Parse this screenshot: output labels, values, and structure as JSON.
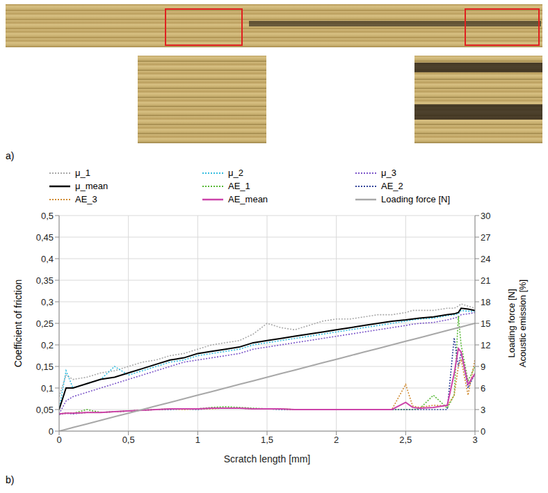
{
  "panel_labels": [
    "a)",
    "b)"
  ],
  "chart_data": {
    "type": "line",
    "xlabel": "Scratch length [mm]",
    "ylabel": "Coefficient of friction",
    "y2label": [
      "Loading force  [N]",
      "Acoustic emission [%]"
    ],
    "grid": true,
    "legend": "top",
    "x": [
      0,
      0.05,
      0.1,
      0.2,
      0.3,
      0.4,
      0.5,
      0.6,
      0.7,
      0.8,
      0.9,
      1,
      1.1,
      1.2,
      1.3,
      1.4,
      1.5,
      1.6,
      1.7,
      1.8,
      1.9,
      2,
      2.1,
      2.2,
      2.3,
      2.4,
      2.5,
      2.55,
      2.6,
      2.7,
      2.8,
      2.85,
      2.88,
      2.9,
      2.95,
      3
    ],
    "xlim": [
      0,
      3
    ],
    "xticks": [
      0,
      {
        "value": 0.5,
        "label": "0,5"
      },
      1,
      {
        "value": 1.5,
        "label": "1,5"
      },
      2,
      {
        "value": 2.5,
        "label": "2,5"
      },
      3
    ],
    "ylim": [
      0,
      0.5
    ],
    "yticks": [
      0,
      {
        "value": 0.05,
        "label": "0,05"
      },
      {
        "value": 0.1,
        "label": "0,1"
      },
      {
        "value": 0.15,
        "label": "0,15"
      },
      {
        "value": 0.2,
        "label": "0,2"
      },
      {
        "value": 0.25,
        "label": "0,25"
      },
      {
        "value": 0.3,
        "label": "0,3"
      },
      {
        "value": 0.35,
        "label": "0,35"
      },
      {
        "value": 0.4,
        "label": "0,4"
      },
      {
        "value": 0.45,
        "label": "0,45"
      },
      {
        "value": 0.5,
        "label": "0,5"
      }
    ],
    "y2lim": [
      0,
      30
    ],
    "y2ticks": [
      0,
      3,
      6,
      9,
      12,
      15,
      18,
      21,
      24,
      27,
      30
    ],
    "series": [
      {
        "name": "μ_1",
        "color": "#a8a8a8",
        "line_style": "dotted",
        "values": [
          0.08,
          0.13,
          0.12,
          0.125,
          0.135,
          0.14,
          0.15,
          0.16,
          0.165,
          0.175,
          0.18,
          0.19,
          0.2,
          0.205,
          0.21,
          0.225,
          0.25,
          0.24,
          0.235,
          0.245,
          0.255,
          0.26,
          0.26,
          0.265,
          0.27,
          0.27,
          0.275,
          0.28,
          0.28,
          0.28,
          0.285,
          0.285,
          0.29,
          0.295,
          0.29,
          0.285
        ]
      },
      {
        "name": "μ_2",
        "color": "#33bde0",
        "line_style": "dotted",
        "values": [
          0.05,
          0.14,
          0.1,
          0.11,
          0.12,
          0.15,
          0.13,
          0.14,
          0.15,
          0.16,
          0.165,
          0.175,
          0.18,
          0.185,
          0.19,
          0.2,
          0.205,
          0.21,
          0.215,
          0.22,
          0.225,
          0.23,
          0.235,
          0.24,
          0.245,
          0.25,
          0.255,
          0.258,
          0.26,
          0.262,
          0.268,
          0.27,
          0.272,
          0.28,
          0.278,
          0.278
        ]
      },
      {
        "name": "μ_3",
        "color": "#7b55c9",
        "line_style": "dotted",
        "values": [
          0.04,
          0.07,
          0.08,
          0.09,
          0.1,
          0.11,
          0.12,
          0.13,
          0.14,
          0.15,
          0.16,
          0.165,
          0.17,
          0.175,
          0.18,
          0.19,
          0.195,
          0.2,
          0.205,
          0.21,
          0.215,
          0.22,
          0.225,
          0.23,
          0.235,
          0.24,
          0.245,
          0.248,
          0.25,
          0.252,
          0.258,
          0.262,
          0.265,
          0.27,
          0.272,
          0.275
        ]
      },
      {
        "name": "μ_mean",
        "color": "#000000",
        "line_style": "solid",
        "values": [
          0.05,
          0.1,
          0.1,
          0.11,
          0.12,
          0.125,
          0.135,
          0.145,
          0.155,
          0.165,
          0.17,
          0.18,
          0.185,
          0.19,
          0.195,
          0.205,
          0.21,
          0.215,
          0.22,
          0.225,
          0.23,
          0.235,
          0.24,
          0.245,
          0.25,
          0.255,
          0.258,
          0.26,
          0.262,
          0.265,
          0.27,
          0.272,
          0.275,
          0.285,
          0.283,
          0.28
        ]
      },
      {
        "name": "AE_1",
        "color": "#55b833",
        "line_style": "dotted",
        "axis": "y2",
        "values": [
          2.4,
          2.5,
          2.5,
          3,
          2.6,
          2.7,
          2.8,
          2.9,
          3,
          3.1,
          3.1,
          3.1,
          3.3,
          3.4,
          3.3,
          3.2,
          3.1,
          3.1,
          3,
          3,
          3,
          3,
          3,
          3,
          3,
          3,
          3,
          3,
          3.1,
          5,
          3.2,
          5,
          16,
          12,
          7,
          9
        ]
      },
      {
        "name": "AE_2",
        "color": "#33449a",
        "line_style": "dotted",
        "axis": "y2",
        "values": [
          2.3,
          2.5,
          2.4,
          2.6,
          2.6,
          2.7,
          2.8,
          2.9,
          3,
          3,
          3.1,
          3,
          3.2,
          3.2,
          3.2,
          3.1,
          3.1,
          3,
          3,
          3,
          3,
          3,
          3,
          3,
          3,
          3,
          3,
          3,
          3,
          3,
          3,
          13,
          9,
          11,
          6,
          8
        ]
      },
      {
        "name": "AE_3",
        "color": "#d08a30",
        "line_style": "dotted",
        "axis": "y2",
        "values": [
          2.4,
          2.5,
          2.5,
          2.6,
          2.6,
          2.7,
          2.8,
          2.9,
          3,
          3.1,
          3,
          3.1,
          3.1,
          3.2,
          3.2,
          3.1,
          3.1,
          3.1,
          3,
          3,
          3,
          3,
          3,
          3,
          3,
          3,
          6.5,
          3.5,
          3.3,
          3.6,
          3.5,
          5,
          9,
          10,
          5,
          10
        ]
      },
      {
        "name": "AE_mean",
        "color": "#cc44aa",
        "line_style": "solid",
        "axis": "y2",
        "values": [
          2.4,
          2.5,
          2.5,
          2.6,
          2.6,
          2.7,
          2.8,
          2.9,
          3,
          3.1,
          3.1,
          3.1,
          3.2,
          3.2,
          3.2,
          3.1,
          3.1,
          3.1,
          3,
          3,
          3,
          3,
          3,
          3,
          3,
          3,
          4,
          3.3,
          3.2,
          3.3,
          3.6,
          8,
          11.5,
          11,
          6.5,
          8
        ]
      },
      {
        "name": "Loading force [N]",
        "color": "#a8a8a8",
        "line_style": "solid",
        "axis": "y2",
        "values": [
          0,
          0.25,
          0.5,
          1,
          1.5,
          2,
          2.5,
          3,
          3.5,
          4,
          4.5,
          5,
          5.5,
          6,
          6.5,
          7,
          7.5,
          8,
          8.5,
          9,
          9.5,
          10,
          10.5,
          11,
          11.5,
          12,
          12.5,
          12.75,
          13,
          13.5,
          14,
          14.25,
          14.4,
          14.5,
          14.75,
          15
        ]
      }
    ]
  }
}
